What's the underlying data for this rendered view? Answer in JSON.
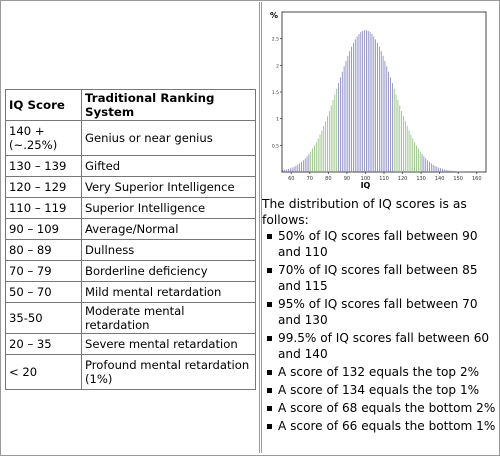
{
  "table": {
    "headers": [
      "IQ Score",
      "Traditional Ranking System"
    ],
    "rows": [
      [
        "140 + (~.25%)",
        "Genius or near genius"
      ],
      [
        "130 – 139",
        "Gifted"
      ],
      [
        "120 – 129",
        "Very Superior Intelligence"
      ],
      [
        "110 – 119",
        "Superior Intelligence"
      ],
      [
        "90 – 109",
        "Average/Normal"
      ],
      [
        "80 – 89",
        "Dullness"
      ],
      [
        "70 – 79",
        "Borderline deficiency"
      ],
      [
        "50 – 70",
        "Mild mental retardation"
      ],
      [
        "35-50",
        "Moderate mental retardation"
      ],
      [
        "20 – 35",
        "Severe mental retardation"
      ],
      [
        "< 20",
        "Profound mental retardation (1%)"
      ]
    ]
  },
  "chart_data": {
    "type": "bar",
    "title": "",
    "xlabel": "IQ",
    "ylabel": "%",
    "x_ticks": [
      60,
      70,
      80,
      90,
      100,
      110,
      120,
      130,
      140,
      150,
      160
    ],
    "y_ticks": [
      "2.5",
      "2",
      "1.5",
      "1",
      "0.5"
    ],
    "xlim": [
      55,
      165
    ],
    "ylim": [
      0,
      3.0
    ],
    "distribution": {
      "mean": 100,
      "sd": 15,
      "peak_percent": 2.66
    },
    "bands": [
      {
        "range": [
          55,
          70
        ],
        "color": "#7a7ab8"
      },
      {
        "range": [
          70,
          85
        ],
        "color": "#86b870"
      },
      {
        "range": [
          85,
          115
        ],
        "color": "#7a7ab8"
      },
      {
        "range": [
          115,
          130
        ],
        "color": "#86b870"
      },
      {
        "range": [
          130,
          165
        ],
        "color": "#7a7ab8"
      }
    ]
  },
  "text": {
    "intro": "The distribution of IQ scores is as follows:",
    "bullets": [
      "50% of IQ scores fall between 90 and 110",
      "70% of IQ scores fall between 85 and 115",
      "95% of IQ scores fall between 70 and 130",
      "99.5% of IQ scores fall between 60 and 140",
      "A score of 132 equals the top 2%",
      "A score of 134 equals the top 1%",
      "A score of 68 equals the bottom 2%",
      "A score of 66 equals the bottom 1%"
    ]
  }
}
